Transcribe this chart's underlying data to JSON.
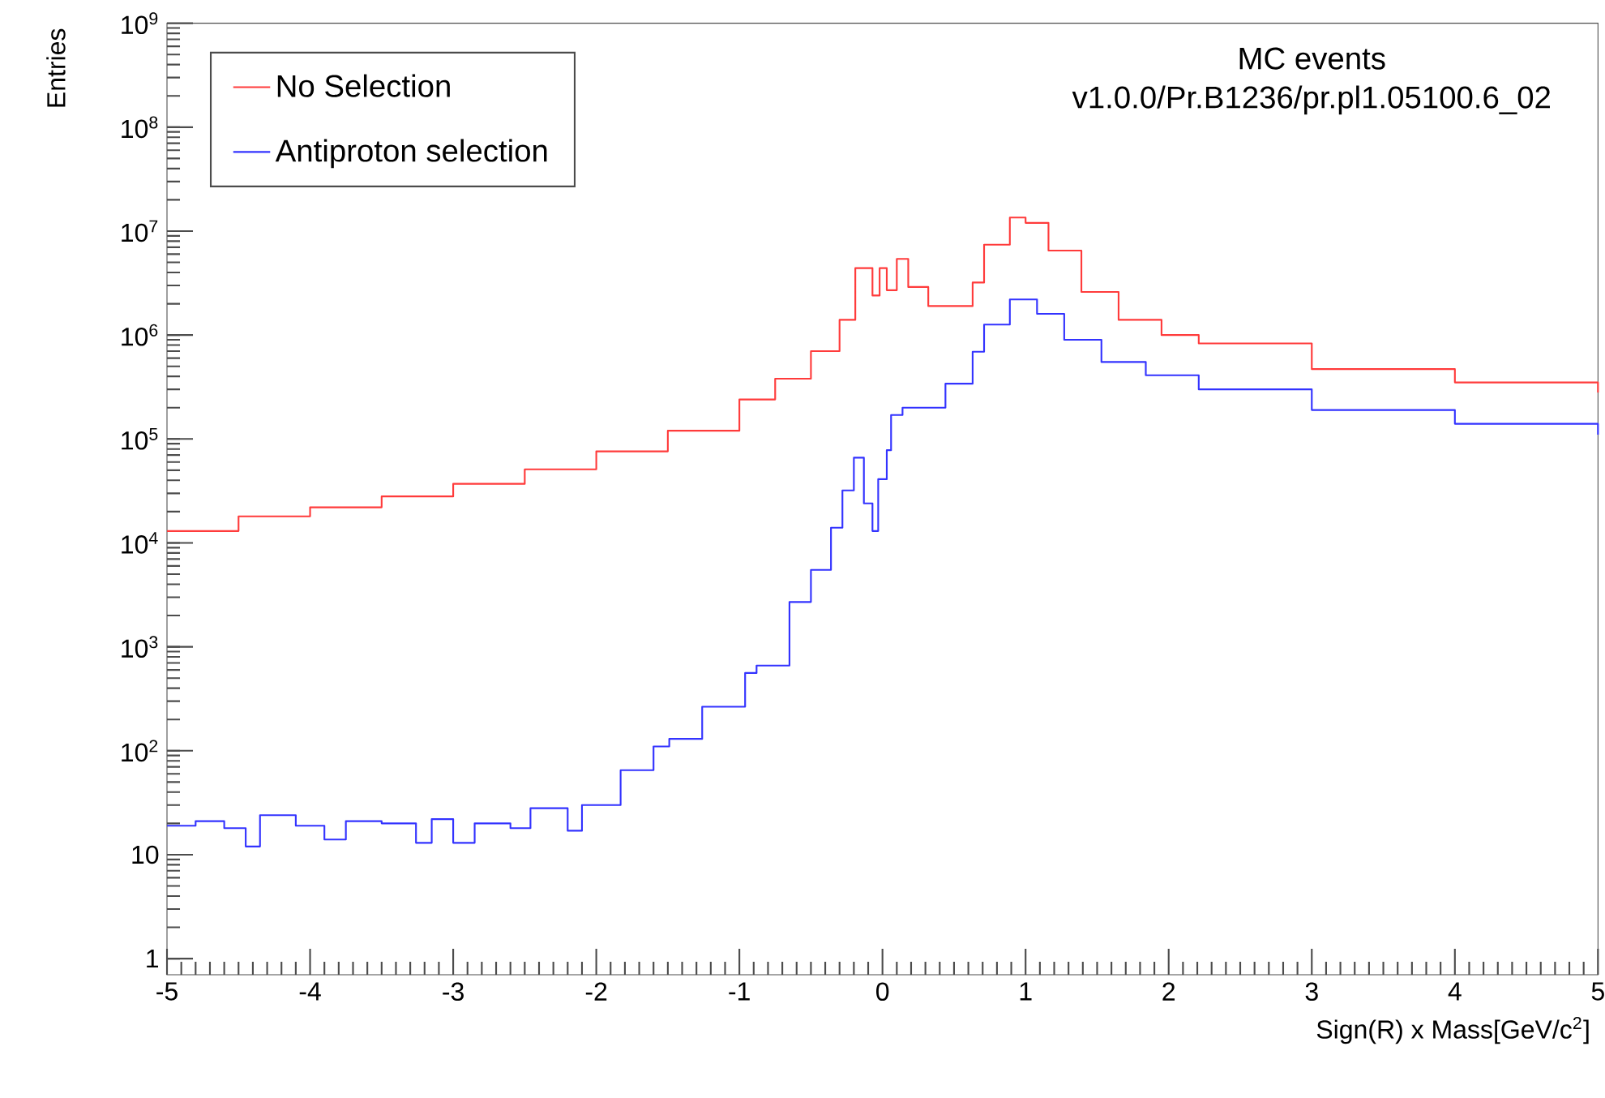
{
  "chart_data": {
    "type": "step",
    "xlabel": "Sign(R) x Mass[GeV/c$^{2}$]",
    "ylabel": "Entries",
    "annotations": [
      "MC events",
      "v1.0.0/Pr.B1236/pr.pl1.05100.6_02"
    ],
    "log": "y",
    "legend": "top left",
    "grid": false,
    "xlim": [
      -5,
      5
    ],
    "xticks": [
      -5,
      -4,
      -3,
      -2,
      -1,
      0,
      1,
      2,
      3,
      4,
      5
    ],
    "ylim": [
      0.7,
      1000000000
    ],
    "yticks": [
      1,
      10,
      {
        "value": 100,
        "label": "10$^{2}$"
      },
      {
        "value": 1000,
        "label": "10$^{3}$"
      },
      {
        "value": 10000,
        "label": "10$^{4}$"
      },
      {
        "value": 100000,
        "label": "10$^{5}$"
      },
      {
        "value": 1000000,
        "label": "10$^{6}$"
      },
      {
        "value": 10000000,
        "label": "10$^{7}$"
      },
      {
        "value": 100000000,
        "label": "10$^{8}$"
      },
      {
        "value": 1000000000,
        "label": "10$^{9}$"
      }
    ],
    "series": [
      {
        "name": "No Selection",
        "color": "#ff3b3b",
        "x": [
          -5,
          -4.5,
          -4,
          -3.5,
          -3,
          -2.5,
          -2,
          -1.5,
          -1,
          -0.75,
          -0.5,
          -0.3,
          -0.19,
          -0.07,
          -0.02,
          0.03,
          0.1,
          0.18,
          0.32,
          0.48,
          0.63,
          0.71,
          0.89,
          1.0,
          1.16,
          1.39,
          1.65,
          1.95,
          2.21,
          3,
          4,
          5
        ],
        "values": [
          13000,
          18000,
          22000,
          28000,
          37000,
          51000,
          76000,
          120000,
          240000,
          380000,
          700000,
          1400000,
          4400000,
          2400000,
          4400000,
          2700000,
          5400000,
          2900000,
          1900000,
          1900000,
          3200000,
          7400000,
          13500000,
          12000000,
          6500000,
          2600000,
          1400000,
          1000000,
          830000,
          470000,
          350000,
          280000
        ]
      },
      {
        "name": "Antiproton selection",
        "color": "#3333ff",
        "x": [
          -5,
          -4.8,
          -4.6,
          -4.45,
          -4.35,
          -4.1,
          -3.9,
          -3.75,
          -3.5,
          -3.26,
          -3.15,
          -3.0,
          -2.85,
          -2.6,
          -2.46,
          -2.2,
          -2.1,
          -1.83,
          -1.6,
          -1.49,
          -1.26,
          -0.96,
          -0.88,
          -0.65,
          -0.5,
          -0.36,
          -0.28,
          -0.2,
          -0.13,
          -0.07,
          -0.03,
          0.03,
          0.06,
          0.14,
          0.2,
          0.44,
          0.63,
          0.71,
          0.89,
          1.08,
          1.27,
          1.53,
          1.84,
          2.21,
          3,
          4,
          5
        ],
        "values": [
          19,
          21,
          18,
          12,
          24,
          19,
          14,
          21,
          20,
          13,
          22,
          13,
          20,
          18,
          28,
          17,
          30,
          65,
          110,
          130,
          265,
          560,
          660,
          2700,
          5500,
          14000,
          32000,
          66000,
          24000,
          13000,
          41000,
          78000,
          170000,
          200000,
          200000,
          340000,
          690000,
          1260000,
          2200000,
          1600000,
          900000,
          550000,
          410000,
          300000,
          190000,
          140000,
          110000
        ]
      }
    ]
  }
}
